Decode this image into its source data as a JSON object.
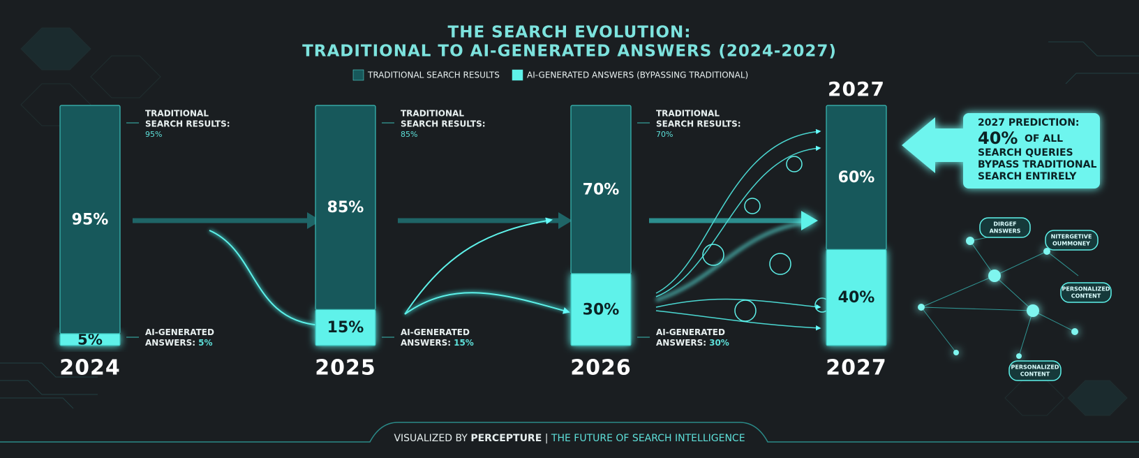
{
  "chart_data": {
    "type": "stacked-bar",
    "title": [
      "THE SEARCH EVOLUTION:",
      "TRADITIONAL TO AI-GENERATED ANSWERS (2024-2027)"
    ],
    "categories": [
      "2024",
      "2025",
      "2026",
      "2027"
    ],
    "series": [
      {
        "name": "TRADITIONAL SEARCH RESULTS",
        "color": "#17585b",
        "values": [
          95,
          85,
          70,
          60
        ],
        "value_labels": [
          "95%",
          "85%",
          "70%",
          "60%"
        ]
      },
      {
        "name": "AI-GENERATED ANSWERS (BYPASSING TRADITIONAL)",
        "color": "#5ef2ea",
        "values": [
          5,
          15,
          30,
          40
        ],
        "value_labels": [
          "5%",
          "15%",
          "30%",
          "40%"
        ]
      }
    ],
    "side_labels": {
      "traditional": [
        "TRADITIONAL",
        "SEARCH RESULTS:"
      ],
      "ai": [
        "AI-GENERATED",
        "ANSWERS:"
      ]
    },
    "callout": {
      "heading": "2027 PREDICTION:",
      "after_value": "OF ALL",
      "lines": [
        "SEARCH QUERIES",
        "BYPASS TRADITIONAL",
        "SEARCH ENTIRELY"
      ]
    },
    "network_labels": [
      [
        "DIRGEF",
        "ANSWERS"
      ],
      [
        "NITERGETIVE",
        "OUMMONEY"
      ],
      [
        "PERSONALIZED",
        "CONTENT"
      ],
      [
        "PERSONALIZED",
        "CONTENT"
      ]
    ],
    "footer": {
      "prefix": "VISUALIZED BY",
      "brand": "PERCEPTURE",
      "separator": "|",
      "tagline": "THE FUTURE OF SEARCH INTELLIGENCE"
    }
  }
}
